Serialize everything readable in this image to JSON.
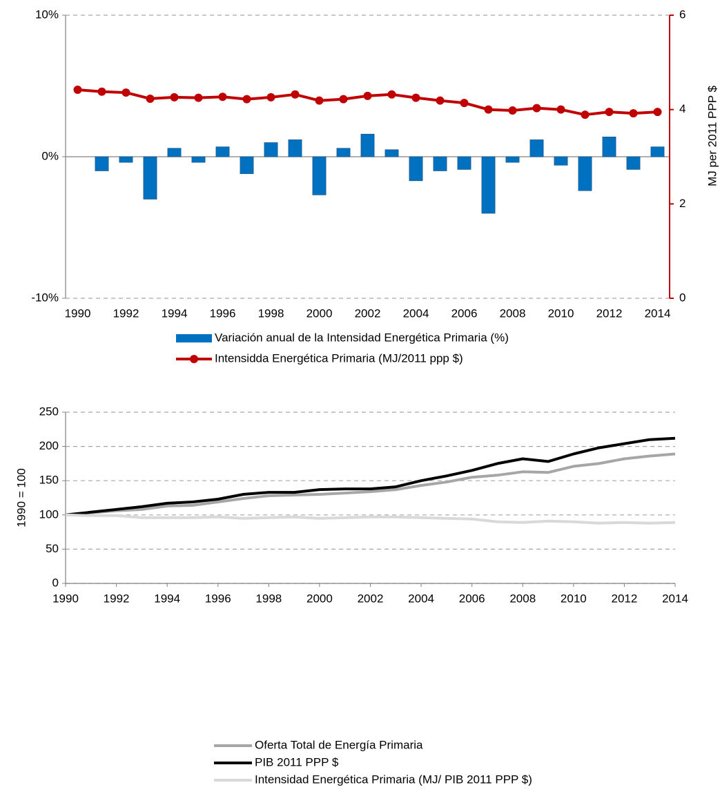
{
  "chart_data": [
    {
      "type": "bar",
      "categories": [
        "1990",
        "1991",
        "1992",
        "1993",
        "1994",
        "1995",
        "1996",
        "1997",
        "1998",
        "1999",
        "2000",
        "2001",
        "2002",
        "2003",
        "2004",
        "2005",
        "2006",
        "2007",
        "2008",
        "2009",
        "2010",
        "2011",
        "2012",
        "2013",
        "2014"
      ],
      "xtick_every": 2,
      "ylim": [
        -10,
        10
      ],
      "yticks": [
        {
          "value": -10,
          "label": "-10%"
        },
        {
          "value": 0,
          "label": "0%"
        },
        {
          "value": 10,
          "label": "10%"
        }
      ],
      "y2lim": [
        0,
        6
      ],
      "y2ticks": [
        0,
        2,
        4,
        6
      ],
      "y2label": "MJ per 2011 PPP $",
      "y2color": "#c00000",
      "grid": true,
      "series": [
        {
          "name": "Variación anual de la Intensidad Energética Primaria (%)",
          "type": "bar",
          "color": "#0070c0",
          "values": [
            null,
            -1.0,
            -0.4,
            -3.0,
            0.6,
            -0.4,
            0.7,
            -1.2,
            1.0,
            1.2,
            -2.7,
            0.6,
            1.6,
            0.5,
            -1.7,
            -1.0,
            -0.9,
            -4.0,
            -0.4,
            1.2,
            -0.6,
            -2.4,
            1.4,
            -0.9,
            0.7
          ]
        },
        {
          "name": "Intensidda Energética Primaria (MJ/2011 ppp $)",
          "type": "line",
          "axis": "y2",
          "color": "#c00000",
          "values": [
            4.42,
            4.38,
            4.36,
            4.23,
            4.26,
            4.25,
            4.27,
            4.22,
            4.26,
            4.32,
            4.19,
            4.22,
            4.29,
            4.32,
            4.25,
            4.19,
            4.14,
            4.0,
            3.98,
            4.03,
            4.0,
            3.89,
            3.95,
            3.92,
            3.95
          ]
        }
      ]
    },
    {
      "type": "line",
      "x": [
        1990,
        1991,
        1992,
        1993,
        1994,
        1995,
        1996,
        1997,
        1998,
        1999,
        2000,
        2001,
        2002,
        2003,
        2004,
        2005,
        2006,
        2007,
        2008,
        2009,
        2010,
        2011,
        2012,
        2013,
        2014
      ],
      "xlim": [
        1990,
        2014
      ],
      "xticks": [
        1990,
        1992,
        1994,
        1996,
        1998,
        2000,
        2002,
        2004,
        2006,
        2008,
        2010,
        2012,
        2014
      ],
      "ylim": [
        0,
        250
      ],
      "yticks": [
        0,
        50,
        100,
        150,
        200,
        250
      ],
      "ylabel": "1990 = 100",
      "grid": true,
      "series": [
        {
          "name": "Oferta Total de Energía Primaria",
          "color": "#a6a6a6",
          "values": [
            100,
            103,
            106,
            108,
            113,
            114,
            119,
            124,
            128,
            129,
            130,
            132,
            134,
            137,
            143,
            148,
            155,
            158,
            163,
            162,
            171,
            175,
            182,
            186,
            189
          ]
        },
        {
          "name": "PIB 2011 PPP $",
          "color": "#000000",
          "values": [
            100,
            104,
            108,
            112,
            117,
            119,
            123,
            130,
            133,
            133,
            137,
            138,
            138,
            141,
            150,
            157,
            165,
            175,
            182,
            178,
            189,
            198,
            204,
            210,
            212
          ]
        },
        {
          "name": "Intensidad Energética Primaria (MJ/ PIB 2011 PPP $)",
          "color": "#d9d9d9",
          "values": [
            100,
            99,
            99,
            96,
            96,
            96,
            97,
            95,
            96,
            97,
            95,
            96,
            97,
            97,
            96,
            95,
            94,
            90,
            89,
            91,
            90,
            88,
            89,
            88,
            89
          ]
        }
      ]
    }
  ]
}
